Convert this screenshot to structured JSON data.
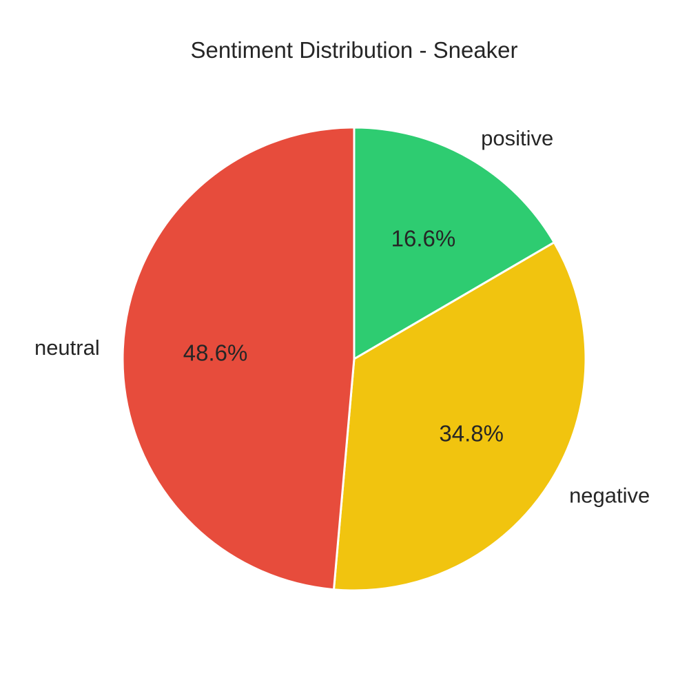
{
  "chart_data": {
    "type": "pie",
    "title": "Sentiment Distribution - Sneaker",
    "start_angle_deg": 90,
    "direction": "clockwise",
    "slices": [
      {
        "label": "positive",
        "value": 16.6,
        "pct_label": "16.6%",
        "color": "#2ecc71"
      },
      {
        "label": "negative",
        "value": 34.8,
        "pct_label": "34.8%",
        "color": "#f1c40f"
      },
      {
        "label": "neutral",
        "value": 48.6,
        "pct_label": "48.6%",
        "color": "#e74c3c"
      }
    ]
  }
}
